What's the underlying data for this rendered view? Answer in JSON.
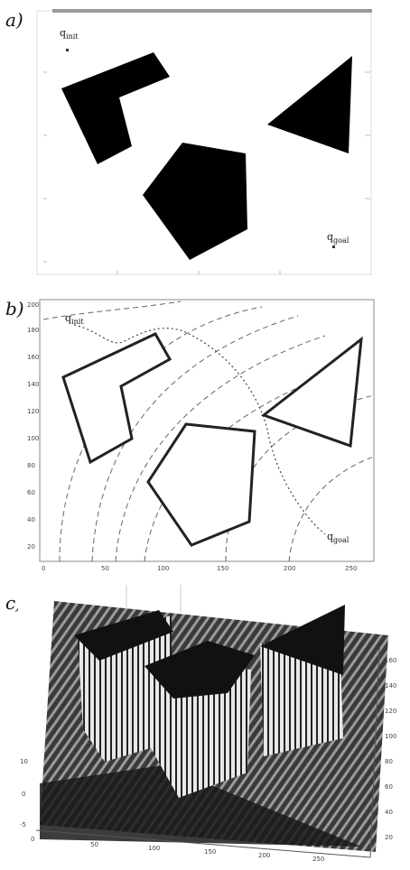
{
  "panels": [
    {
      "label": "a)",
      "q_init": "q",
      "q_init_sub": "init",
      "q_goal": "q",
      "q_goal_sub": "goal"
    },
    {
      "label": "b)",
      "q_init": "q",
      "q_init_sub": "init",
      "q_goal": "q",
      "q_goal_sub": "goal",
      "x_ticks": [
        "0",
        "50",
        "100",
        "150",
        "200",
        "250"
      ],
      "y_ticks": [
        "200",
        "180",
        "160",
        "140",
        "120",
        "100",
        "80",
        "60",
        "40",
        "20"
      ]
    },
    {
      "label": "c)",
      "x_ticks": [
        "0",
        "50",
        "100",
        "150",
        "200",
        "250"
      ],
      "z_ticks": [
        "160",
        "140",
        "120",
        "100",
        "80",
        "60",
        "40",
        "20"
      ],
      "y_ticks_left": [
        "10",
        "0",
        "-5"
      ]
    }
  ]
}
